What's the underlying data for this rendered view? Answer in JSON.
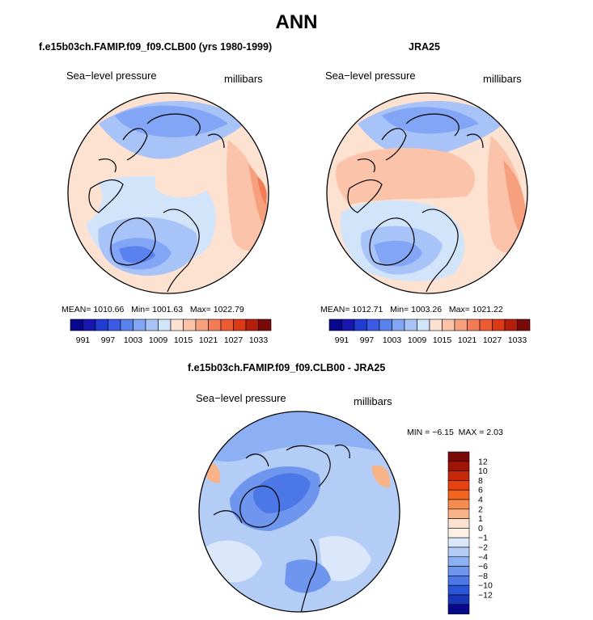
{
  "title": "ANN",
  "panels": [
    {
      "heading": "f.e15b03ch.FAMIP.f09_f09.CLB00 (yrs 1980-1999)",
      "variable": "Sea−level pressure",
      "units": "millibars",
      "stats": {
        "mean_label": "MEAN=",
        "mean": "1010.66",
        "min_label": "Min=",
        "min": "1001.63",
        "max_label": "Max=",
        "max": "1022.79"
      }
    },
    {
      "heading": "JRA25",
      "variable": "Sea−level pressure",
      "units": "millibars",
      "stats": {
        "mean_label": "MEAN=",
        "mean": "1012.71",
        "min_label": "Min=",
        "min": "1003.26",
        "max_label": "Max=",
        "max": "1021.22"
      }
    }
  ],
  "diff": {
    "heading": "f.e15b03ch.FAMIP.f09_f09.CLB00 - JRA25",
    "variable": "Sea−level pressure",
    "units": "millibars",
    "min_label": "MIN =",
    "min": "−6.15",
    "max_label": "MAX =",
    "max": "2.03"
  },
  "chart_data": [
    {
      "type": "heatmap",
      "projection": "north-polar-stereographic",
      "title": "f.e15b03ch.FAMIP.f09_f09.CLB00 (yrs 1980-1999)",
      "variable": "Sea-level pressure",
      "units": "millibars",
      "mean": 1010.66,
      "min": 1001.63,
      "max": 1022.79,
      "colorbar_ticks": [
        "991",
        "997",
        "1003",
        "1009",
        "1015",
        "1021",
        "1027",
        "1033"
      ],
      "colorbar_levels": 16,
      "colorbar_colors": [
        "#08088c",
        "#1616b0",
        "#1e3cd2",
        "#3c5ae6",
        "#5a82ee",
        "#82a5f5",
        "#a8c3f8",
        "#d2e4fa",
        "#fde2d2",
        "#fbc3aa",
        "#f7a07e",
        "#f27c55",
        "#ee5a32",
        "#dc3a14",
        "#b41e0a",
        "#7a0a0a"
      ]
    },
    {
      "type": "heatmap",
      "projection": "north-polar-stereographic",
      "title": "JRA25",
      "variable": "Sea-level pressure",
      "units": "millibars",
      "mean": 1012.71,
      "min": 1003.26,
      "max": 1021.22,
      "colorbar_ticks": [
        "991",
        "997",
        "1003",
        "1009",
        "1015",
        "1021",
        "1027",
        "1033"
      ],
      "colorbar_levels": 16,
      "colorbar_colors": [
        "#08088c",
        "#1616b0",
        "#1e3cd2",
        "#3c5ae6",
        "#5a82ee",
        "#82a5f5",
        "#a8c3f8",
        "#d2e4fa",
        "#fde2d2",
        "#fbc3aa",
        "#f7a07e",
        "#f27c55",
        "#ee5a32",
        "#dc3a14",
        "#b41e0a",
        "#7a0a0a"
      ]
    },
    {
      "type": "heatmap",
      "projection": "north-polar-stereographic",
      "title": "f.e15b03ch.FAMIP.f09_f09.CLB00 - JRA25",
      "variable": "Sea-level pressure",
      "units": "millibars",
      "min": -6.15,
      "max": 2.03,
      "colorbar_ticks": [
        "12",
        "10",
        "8",
        "6",
        "4",
        "2",
        "1",
        "0",
        "−1",
        "−2",
        "−4",
        "−6",
        "−8",
        "−10",
        "−12"
      ],
      "colorbar_colors": [
        "#7a0a0a",
        "#a01408",
        "#c8280a",
        "#e6410f",
        "#f5641e",
        "#f78c50",
        "#f8b488",
        "#fde2d2",
        "#fdf1e6",
        "#dbe8fb",
        "#b4cdf7",
        "#8cb0f3",
        "#6e96ee",
        "#4b78e6",
        "#2a55d8",
        "#1a36b8",
        "#08088c"
      ]
    }
  ]
}
